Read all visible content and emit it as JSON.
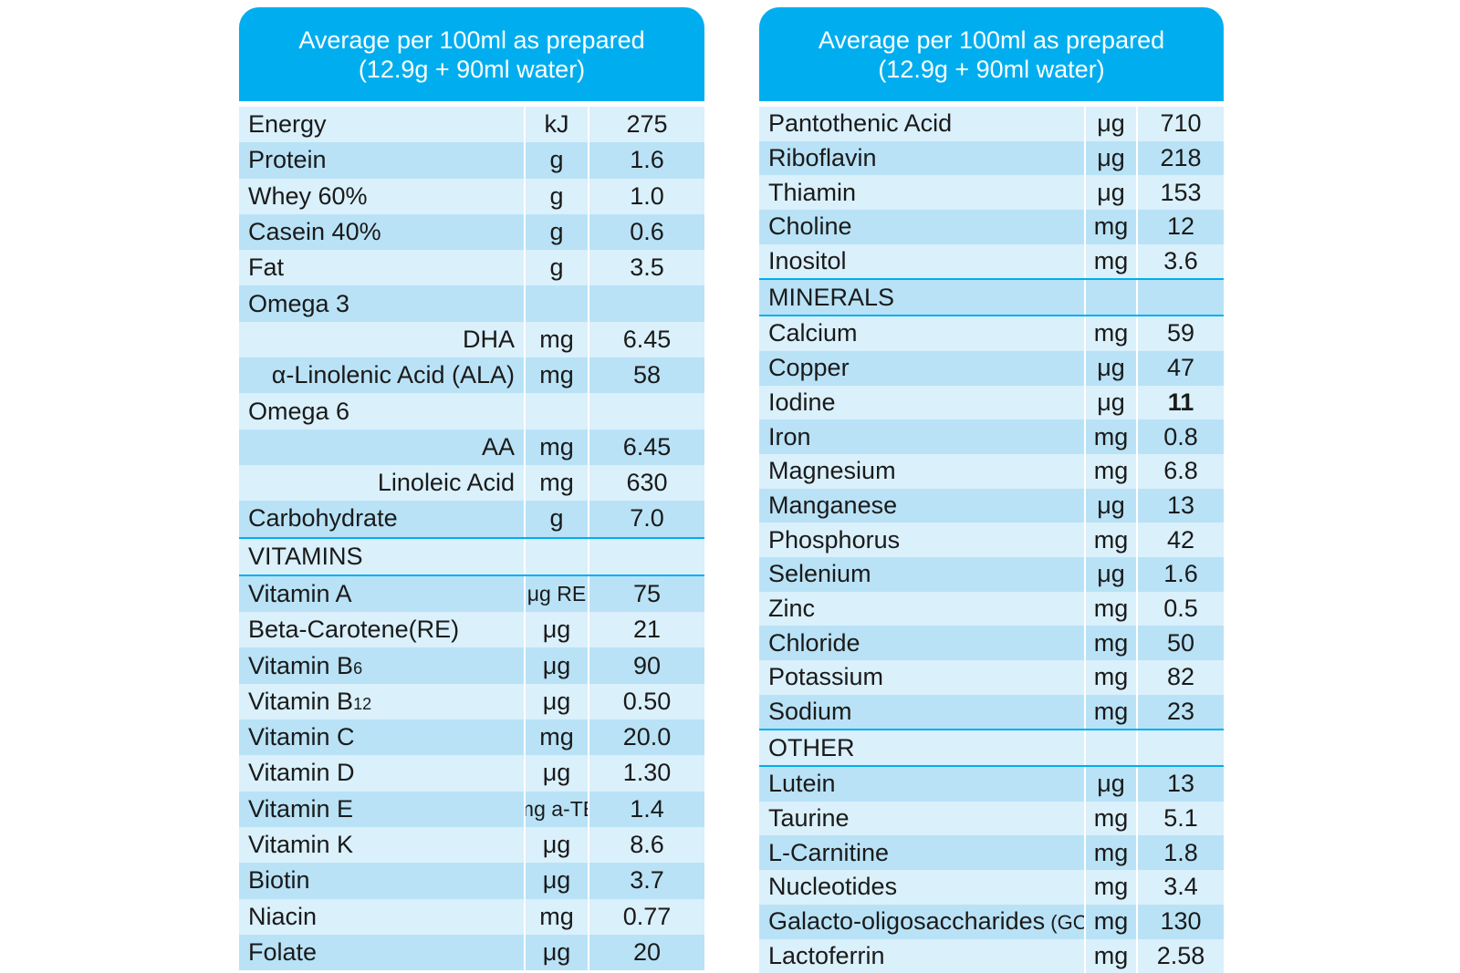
{
  "left_table": {
    "header_line1": "Average per 100ml as prepared",
    "header_line2": "(12.9g + 90ml water)",
    "rows": [
      {
        "name": "Energy",
        "unit": "kJ",
        "value": "275"
      },
      {
        "name": "Protein",
        "unit": "g",
        "value": "1.6"
      },
      {
        "name": "Whey 60%",
        "unit": "g",
        "value": "1.0"
      },
      {
        "name": "Casein 40%",
        "unit": "g",
        "value": "0.6"
      },
      {
        "name": "Fat",
        "unit": "g",
        "value": "3.5"
      },
      {
        "name": "Omega 3",
        "unit": "",
        "value": ""
      },
      {
        "name": "DHA",
        "unit": "mg",
        "value": "6.45"
      },
      {
        "name": "α-Linolenic Acid (ALA)",
        "unit": "mg",
        "value": "58"
      },
      {
        "name": "Omega 6",
        "unit": "",
        "value": ""
      },
      {
        "name": "AA",
        "unit": "mg",
        "value": "6.45"
      },
      {
        "name": "Linoleic Acid",
        "unit": "mg",
        "value": "630"
      },
      {
        "name": "Carbohydrate",
        "unit": "g",
        "value": "7.0"
      },
      {
        "name": "VITAMINS",
        "unit": "",
        "value": ""
      },
      {
        "name": "Vitamin A",
        "unit": "μg RE",
        "value": "75"
      },
      {
        "name": "Beta-Carotene(RE)",
        "unit": "μg",
        "value": "21"
      },
      {
        "name": "Vitamin B",
        "name_sub": "6",
        "unit": "μg",
        "value": "90"
      },
      {
        "name": "Vitamin B",
        "name_sub": "12",
        "unit": "μg",
        "value": "0.50"
      },
      {
        "name": "Vitamin C",
        "unit": "mg",
        "value": "20.0"
      },
      {
        "name": "Vitamin D",
        "unit": "μg",
        "value": "1.30"
      },
      {
        "name": "Vitamin E",
        "unit": "mg a-TE",
        "value": "1.4"
      },
      {
        "name": "Vitamin K",
        "unit": "μg",
        "value": "8.6"
      },
      {
        "name": "Biotin",
        "unit": "μg",
        "value": "3.7"
      },
      {
        "name": "Niacin",
        "unit": "mg",
        "value": "0.77"
      },
      {
        "name": "Folate",
        "unit": "μg",
        "value": "20"
      }
    ]
  },
  "right_table": {
    "header_line1": "Average per 100ml as prepared",
    "header_line2": "(12.9g + 90ml water)",
    "rows": [
      {
        "name": "Pantothenic Acid",
        "unit": "μg",
        "value": "710"
      },
      {
        "name": "Riboflavin",
        "unit": "μg",
        "value": "218"
      },
      {
        "name": "Thiamin",
        "unit": "μg",
        "value": "153"
      },
      {
        "name": "Choline",
        "unit": "mg",
        "value": "12"
      },
      {
        "name": "Inositol",
        "unit": "mg",
        "value": "3.6"
      },
      {
        "name": "MINERALS",
        "unit": "",
        "value": ""
      },
      {
        "name": "Calcium",
        "unit": "mg",
        "value": "59"
      },
      {
        "name": "Copper",
        "unit": "μg",
        "value": "47"
      },
      {
        "name": "Iodine",
        "unit": "μg",
        "value": "11"
      },
      {
        "name": "Iron",
        "unit": "mg",
        "value": "0.8"
      },
      {
        "name": "Magnesium",
        "unit": "mg",
        "value": "6.8"
      },
      {
        "name": "Manganese",
        "unit": "μg",
        "value": "13"
      },
      {
        "name": "Phosphorus",
        "unit": "mg",
        "value": "42"
      },
      {
        "name": "Selenium",
        "unit": "μg",
        "value": "1.6"
      },
      {
        "name": "Zinc",
        "unit": "mg",
        "value": "0.5"
      },
      {
        "name": "Chloride",
        "unit": "mg",
        "value": "50"
      },
      {
        "name": "Potassium",
        "unit": "mg",
        "value": "82"
      },
      {
        "name": "Sodium",
        "unit": "mg",
        "value": "23"
      },
      {
        "name": "OTHER",
        "unit": "",
        "value": ""
      },
      {
        "name": "Lutein",
        "unit": "μg",
        "value": "13"
      },
      {
        "name": "Taurine",
        "unit": "mg",
        "value": "5.1"
      },
      {
        "name": "L-Carnitine",
        "unit": "mg",
        "value": "1.8"
      },
      {
        "name": "Nucleotides",
        "unit": "mg",
        "value": "3.4"
      },
      {
        "name": "Galacto-oligosaccharides",
        "name_small": "(GOS)",
        "unit": "mg",
        "value": "130"
      },
      {
        "name": "Lactoferrin",
        "unit": "mg",
        "value": "2.58"
      }
    ]
  },
  "colors": {
    "header": "#00aeef",
    "row_light": "#daf0fb",
    "row_dark": "#b9e2f6"
  }
}
